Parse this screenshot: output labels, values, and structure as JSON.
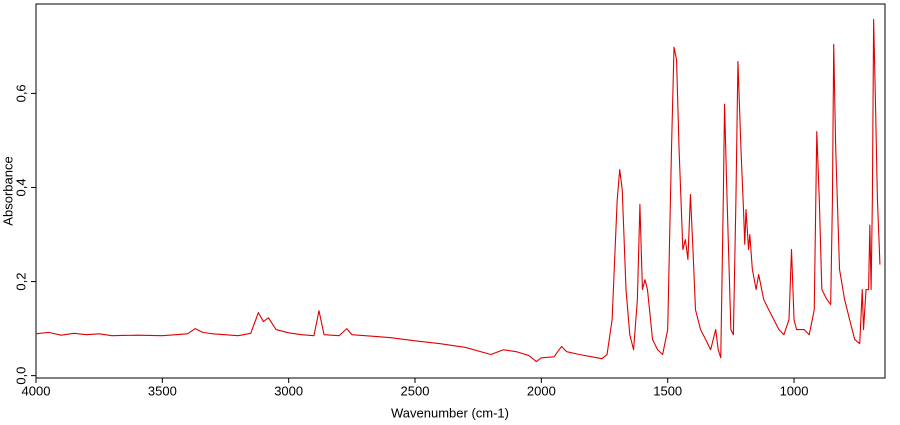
{
  "chart_data": {
    "type": "line",
    "x_label": "Wavenumber (cm-1)",
    "y_label": "Absorbance",
    "x": [
      4000,
      3950,
      3900,
      3850,
      3800,
      3750,
      3700,
      3600,
      3500,
      3400,
      3370,
      3340,
      3300,
      3200,
      3150,
      3120,
      3100,
      3080,
      3050,
      3000,
      2950,
      2900,
      2880,
      2860,
      2800,
      2770,
      2750,
      2600,
      2500,
      2400,
      2300,
      2200,
      2150,
      2100,
      2050,
      2020,
      2000,
      1950,
      1920,
      1900,
      1850,
      1800,
      1760,
      1740,
      1720,
      1700,
      1690,
      1680,
      1665,
      1650,
      1635,
      1620,
      1610,
      1600,
      1590,
      1580,
      1560,
      1540,
      1520,
      1500,
      1485,
      1475,
      1465,
      1455,
      1440,
      1430,
      1420,
      1410,
      1400,
      1390,
      1370,
      1350,
      1330,
      1310,
      1300,
      1290,
      1280,
      1275,
      1265,
      1250,
      1240,
      1230,
      1222,
      1210,
      1200,
      1195,
      1190,
      1180,
      1175,
      1165,
      1150,
      1140,
      1120,
      1100,
      1080,
      1060,
      1040,
      1020,
      1010,
      1000,
      990,
      960,
      940,
      920,
      910,
      900,
      890,
      870,
      855,
      848,
      843,
      835,
      820,
      800,
      780,
      760,
      740,
      730,
      725,
      715,
      705,
      700,
      695,
      690,
      685,
      678,
      670,
      660
    ],
    "values": [
      0.089,
      0.092,
      0.086,
      0.09,
      0.087,
      0.089,
      0.085,
      0.086,
      0.085,
      0.089,
      0.1,
      0.092,
      0.089,
      0.085,
      0.09,
      0.134,
      0.115,
      0.123,
      0.098,
      0.091,
      0.087,
      0.085,
      0.138,
      0.087,
      0.085,
      0.1,
      0.087,
      0.081,
      0.074,
      0.068,
      0.06,
      0.045,
      0.055,
      0.051,
      0.043,
      0.03,
      0.038,
      0.04,
      0.062,
      0.051,
      0.045,
      0.04,
      0.036,
      0.045,
      0.119,
      0.372,
      0.438,
      0.396,
      0.183,
      0.087,
      0.055,
      0.162,
      0.364,
      0.183,
      0.204,
      0.183,
      0.077,
      0.055,
      0.045,
      0.098,
      0.481,
      0.698,
      0.672,
      0.481,
      0.268,
      0.289,
      0.247,
      0.385,
      0.268,
      0.14,
      0.098,
      0.077,
      0.055,
      0.098,
      0.055,
      0.038,
      0.374,
      0.577,
      0.374,
      0.098,
      0.087,
      0.374,
      0.668,
      0.481,
      0.353,
      0.279,
      0.353,
      0.268,
      0.3,
      0.226,
      0.183,
      0.215,
      0.162,
      0.14,
      0.119,
      0.098,
      0.087,
      0.119,
      0.268,
      0.119,
      0.098,
      0.098,
      0.087,
      0.14,
      0.519,
      0.374,
      0.183,
      0.162,
      0.151,
      0.374,
      0.704,
      0.481,
      0.226,
      0.162,
      0.119,
      0.077,
      0.068,
      0.183,
      0.098,
      0.183,
      0.183,
      0.32,
      0.183,
      0.374,
      0.757,
      0.587,
      0.374,
      0.236
    ],
    "color": "#e00000",
    "xlim": [
      4000,
      640
    ],
    "ylim": [
      -0.005,
      0.79
    ],
    "xticks": [
      4000,
      3500,
      3000,
      2500,
      2000,
      1500,
      1000
    ],
    "yticks": [
      {
        "value": 0,
        "label": "0,0"
      },
      {
        "value": 0.2,
        "label": "0,2"
      },
      {
        "value": 0.4,
        "label": "0,4"
      },
      {
        "value": 0.6,
        "label": "0,6"
      }
    ]
  }
}
